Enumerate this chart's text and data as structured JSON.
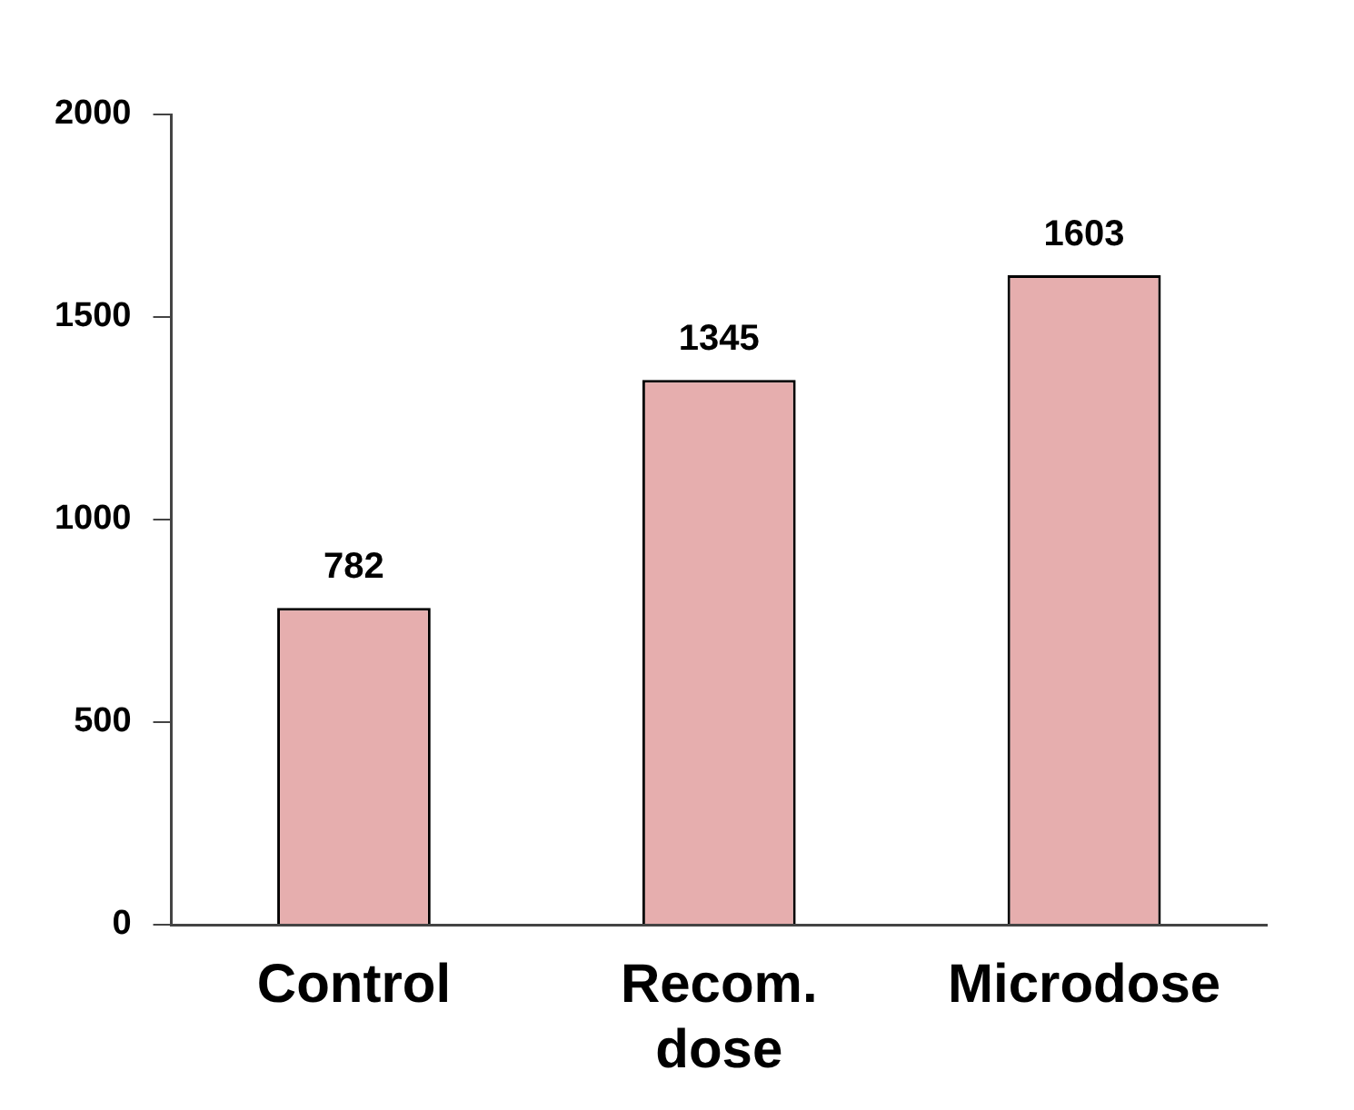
{
  "chart_data": {
    "type": "bar",
    "categories": [
      "Control",
      "Recom. dose",
      "Microdose"
    ],
    "values": [
      782,
      1345,
      1603
    ],
    "color": "#e6aeae",
    "ylim": [
      0,
      2000
    ],
    "yticks": [
      0,
      500,
      1000,
      1500,
      2000
    ],
    "grid": false,
    "legend": false,
    "data_labels": true
  }
}
